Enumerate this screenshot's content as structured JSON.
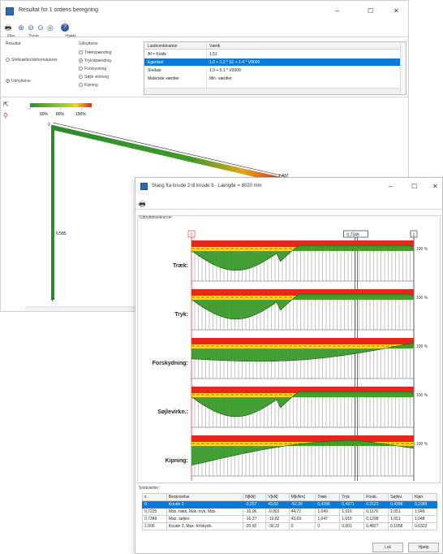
{
  "main_window": {
    "title": "Resultat for 1 ordens beregning",
    "win_min": "–",
    "win_max": "☐",
    "win_close": "✕",
    "toolbar_labels": {
      "file": "Filer",
      "zoom": "Zoom",
      "help": "Hjælp"
    },
    "results_label": "Resultat",
    "results_options": [
      {
        "label": "Snitkræfter/deformationer",
        "selected": false
      },
      {
        "label": "Udnyttelse",
        "selected": true
      }
    ],
    "utilization_label": "Udnyttelse",
    "utilization_options": [
      {
        "label": "Trækspænding",
        "selected": false
      },
      {
        "label": "Tryk/spænding",
        "selected": true
      },
      {
        "label": "Forskydning",
        "selected": false
      },
      {
        "label": "Søjle virkning",
        "selected": false
      },
      {
        "label": "Kipning",
        "selected": false
      }
    ],
    "properties": {
      "col1": "Lastkombination",
      "col2": "Værdi",
      "rows": [
        {
          "name": "Af = Kolde",
          "value": "1.51",
          "selected": false
        },
        {
          "name": "Egenlast",
          "value": "1.0 + 1.2 * S1 + 1.4 * V0000",
          "selected": true
        },
        {
          "name": "Snelast",
          "value": "1.0 + 0.1 * V0000",
          "selected": false
        },
        {
          "name": "Materiale værdier",
          "value": "Min. værdier",
          "selected": false
        }
      ]
    },
    "legend_pcts": [
      "60%",
      "80%",
      "100%"
    ],
    "node_labels": {
      "top": "2",
      "bottom": "1",
      "right": "1,437",
      "mid": "0,585"
    }
  },
  "dialog": {
    "title": "Stang fra knude 2 til knude 3 - Længde = 8020 mm",
    "win_min": "–",
    "win_max": "☐",
    "win_close": "✕",
    "curves_group_label": "Udnyttelseskurver",
    "markers": {
      "start": "0",
      "cursor": "0,7349",
      "end": "1"
    },
    "pct_label": "100 %",
    "curves": [
      {
        "label": "Træk:"
      },
      {
        "label": "Tryk:"
      },
      {
        "label": "Forskydning:"
      },
      {
        "label": "Søjlevirkn.:"
      },
      {
        "label": "Kipning:"
      }
    ],
    "section_group_label": "Snitkræfter:",
    "table": {
      "headers": [
        "x",
        "Beskrivelse",
        "N[kN]",
        "V[kN]",
        "M[kNm]",
        "Træk",
        "Tryk",
        "Forsk.",
        "Søjlev.",
        "Kipn."
      ],
      "rows": [
        [
          "0",
          "Knude 2",
          "-3,257",
          "43,60",
          "-52,39",
          "0,4296",
          "0,4371",
          "0,3122",
          "0,4395",
          "0,1999"
        ],
        [
          "0,7225",
          "Max. træk, Max. tryk, Max.",
          "-16,06",
          "-9,901",
          "44,72",
          "1,049",
          "1,016",
          "0,1176",
          "1,051",
          "1,049"
        ],
        [
          "0,7349",
          "Max. søjlev.",
          "-16,27",
          "-10,82",
          "43,69",
          "1,047",
          "1,015",
          "0,1298",
          "1,051",
          "1,048"
        ],
        [
          "1,000",
          "Knude 3, Max. forskydn.",
          "-20,92",
          "-30,22",
          "0",
          "0",
          "0,001",
          "0,4827",
          "0,1058",
          "0,0322"
        ]
      ],
      "selected_row": 0
    },
    "ok_label": "Luk",
    "help_label": "Hjælp"
  }
}
